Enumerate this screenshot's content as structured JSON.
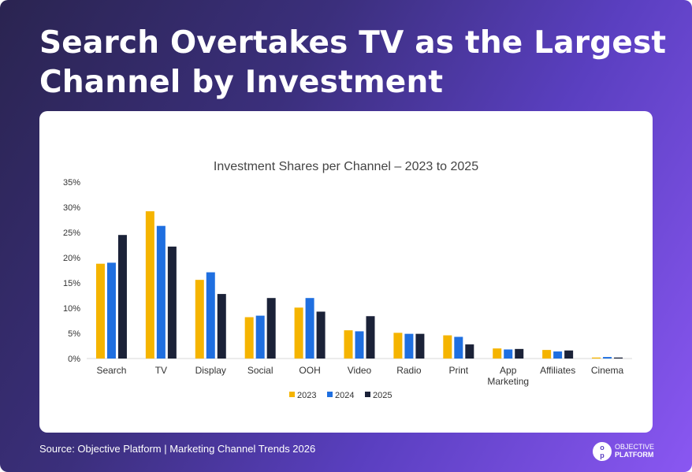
{
  "headline": "Search Overtakes TV as the Largest Channel by Investment",
  "source": "Source: Objective Platform | Marketing Channel Trends 2026",
  "brand": {
    "mark_top": "o",
    "mark_bottom": "p",
    "line1": "OBJECTIVE",
    "line2": "PLATFORM"
  },
  "colors": {
    "2023": "#F5B400",
    "2024": "#1F6FE0",
    "2025": "#1B2238",
    "axis_text": "#333333",
    "title_text": "#444444"
  },
  "chart_data": {
    "type": "bar",
    "title": "Investment Shares per Channel – 2023 to 2025",
    "xlabel": "",
    "ylabel": "",
    "ylim": [
      0,
      35
    ],
    "yticks": [
      "0%",
      "5%",
      "10%",
      "15%",
      "20%",
      "25%",
      "30%",
      "35%"
    ],
    "categories": [
      "Search",
      "TV",
      "Display",
      "Social",
      "OOH",
      "Video",
      "Radio",
      "Print",
      "App Marketing",
      "Affiliates",
      "Cinema"
    ],
    "category_lines": [
      [
        "Search"
      ],
      [
        "TV"
      ],
      [
        "Display"
      ],
      [
        "Social"
      ],
      [
        "OOH"
      ],
      [
        "Video"
      ],
      [
        "Radio"
      ],
      [
        "Print"
      ],
      [
        "App",
        "Marketing"
      ],
      [
        "Affiliates"
      ],
      [
        "Cinema"
      ]
    ],
    "series": [
      {
        "name": "2023",
        "color": "#F5B400",
        "values": [
          18.8,
          29.2,
          15.6,
          8.2,
          10.1,
          5.6,
          5.1,
          4.6,
          2.0,
          1.7,
          0.2
        ]
      },
      {
        "name": "2024",
        "color": "#1F6FE0",
        "values": [
          19.0,
          26.3,
          17.1,
          8.5,
          12.0,
          5.4,
          4.9,
          4.3,
          1.8,
          1.4,
          0.3
        ]
      },
      {
        "name": "2025",
        "color": "#1B2238",
        "values": [
          24.5,
          22.2,
          12.8,
          12.0,
          9.3,
          8.4,
          4.9,
          2.8,
          1.9,
          1.6,
          0.2
        ]
      }
    ],
    "legend_position": "bottom-center",
    "grid": false
  }
}
